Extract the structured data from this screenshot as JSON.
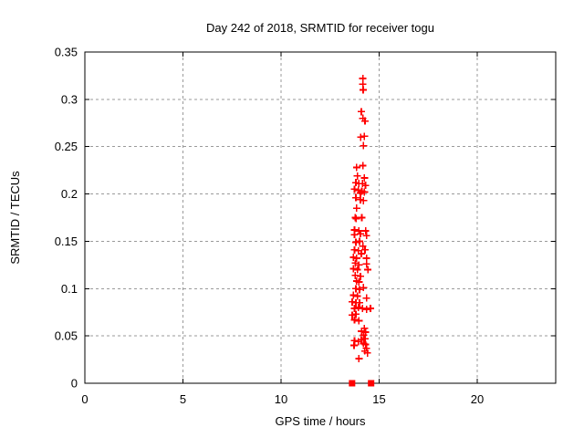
{
  "chart": {
    "title": "Day 242 of 2018, SRMTID for receiver togu",
    "xlabel": "GPS time / hours",
    "ylabel": "SRMTID / TECUs"
  },
  "colors": {
    "marker": "#ff0000",
    "grid": "#9a9a9a",
    "axis": "#000000",
    "background": "#ffffff"
  },
  "chart_data": {
    "type": "scatter",
    "title": "Day 242 of 2018, SRMTID for receiver togu",
    "xlabel": "GPS time / hours",
    "ylabel": "SRMTID / TECUs",
    "xlim": [
      0,
      24
    ],
    "ylim": [
      0,
      0.35
    ],
    "xticks": [
      0,
      5,
      10,
      15,
      20
    ],
    "xtick_labels": [
      "0",
      "5",
      "10",
      "15",
      "20"
    ],
    "yticks": [
      0,
      0.05,
      0.1,
      0.15,
      0.2,
      0.25,
      0.3,
      0.35
    ],
    "ytick_labels": [
      "0",
      "0.05",
      "0.1",
      "0.15",
      "0.2",
      "0.25",
      "0.3",
      "0.35"
    ],
    "grid": true,
    "legend": "none",
    "marker": "plus",
    "marker_color": "#ff0000",
    "points": [
      [
        14.17,
        0.322
      ],
      [
        14.17,
        0.316
      ],
      [
        14.19,
        0.31
      ],
      [
        14.09,
        0.287
      ],
      [
        14.17,
        0.28
      ],
      [
        14.28,
        0.277
      ],
      [
        14.06,
        0.26
      ],
      [
        14.25,
        0.261
      ],
      [
        14.2,
        0.251
      ],
      [
        13.85,
        0.228
      ],
      [
        14.17,
        0.23
      ],
      [
        13.89,
        0.219
      ],
      [
        14.25,
        0.217
      ],
      [
        13.81,
        0.212
      ],
      [
        13.97,
        0.211
      ],
      [
        14.15,
        0.211
      ],
      [
        14.3,
        0.209
      ],
      [
        13.74,
        0.205
      ],
      [
        13.94,
        0.204
      ],
      [
        14.12,
        0.203
      ],
      [
        14.25,
        0.202
      ],
      [
        14.05,
        0.201
      ],
      [
        13.81,
        0.196
      ],
      [
        14.05,
        0.194
      ],
      [
        14.2,
        0.193
      ],
      [
        13.85,
        0.185
      ],
      [
        13.78,
        0.175
      ],
      [
        13.83,
        0.174
      ],
      [
        14.12,
        0.175
      ],
      [
        13.74,
        0.162
      ],
      [
        13.97,
        0.161
      ],
      [
        14.31,
        0.161
      ],
      [
        13.74,
        0.157
      ],
      [
        14.05,
        0.158
      ],
      [
        14.36,
        0.156
      ],
      [
        13.81,
        0.149
      ],
      [
        14.0,
        0.15
      ],
      [
        14.17,
        0.145
      ],
      [
        13.74,
        0.141
      ],
      [
        13.94,
        0.14
      ],
      [
        14.28,
        0.141
      ],
      [
        14.09,
        0.137
      ],
      [
        13.69,
        0.133
      ],
      [
        13.85,
        0.132
      ],
      [
        14.36,
        0.132
      ],
      [
        13.78,
        0.127
      ],
      [
        13.97,
        0.125
      ],
      [
        14.36,
        0.126
      ],
      [
        13.69,
        0.121
      ],
      [
        13.89,
        0.12
      ],
      [
        14.43,
        0.12
      ],
      [
        13.78,
        0.114
      ],
      [
        14.05,
        0.113
      ],
      [
        13.85,
        0.108
      ],
      [
        13.97,
        0.107
      ],
      [
        14.2,
        0.101
      ],
      [
        13.81,
        0.1
      ],
      [
        14.0,
        0.099
      ],
      [
        13.69,
        0.093
      ],
      [
        13.89,
        0.092
      ],
      [
        14.36,
        0.09
      ],
      [
        13.63,
        0.086
      ],
      [
        13.81,
        0.085
      ],
      [
        14.0,
        0.085
      ],
      [
        13.74,
        0.079
      ],
      [
        13.94,
        0.08
      ],
      [
        14.15,
        0.079
      ],
      [
        14.36,
        0.078
      ],
      [
        14.56,
        0.079
      ],
      [
        13.63,
        0.072
      ],
      [
        13.81,
        0.073
      ],
      [
        13.74,
        0.067
      ],
      [
        13.97,
        0.066
      ],
      [
        14.1,
        0.055
      ],
      [
        14.3,
        0.054
      ],
      [
        14.25,
        0.058
      ],
      [
        14.2,
        0.051
      ],
      [
        14.28,
        0.047
      ],
      [
        13.74,
        0.045
      ],
      [
        13.94,
        0.044
      ],
      [
        14.09,
        0.046
      ],
      [
        13.72,
        0.04
      ],
      [
        14.2,
        0.042
      ],
      [
        14.31,
        0.041
      ],
      [
        14.36,
        0.037
      ],
      [
        14.27,
        0.034
      ],
      [
        14.4,
        0.032
      ],
      [
        13.97,
        0.026
      ]
    ],
    "zero_markers": {
      "marker": "filled-square",
      "hours": [
        13.62,
        14.59
      ],
      "value": 0
    }
  }
}
